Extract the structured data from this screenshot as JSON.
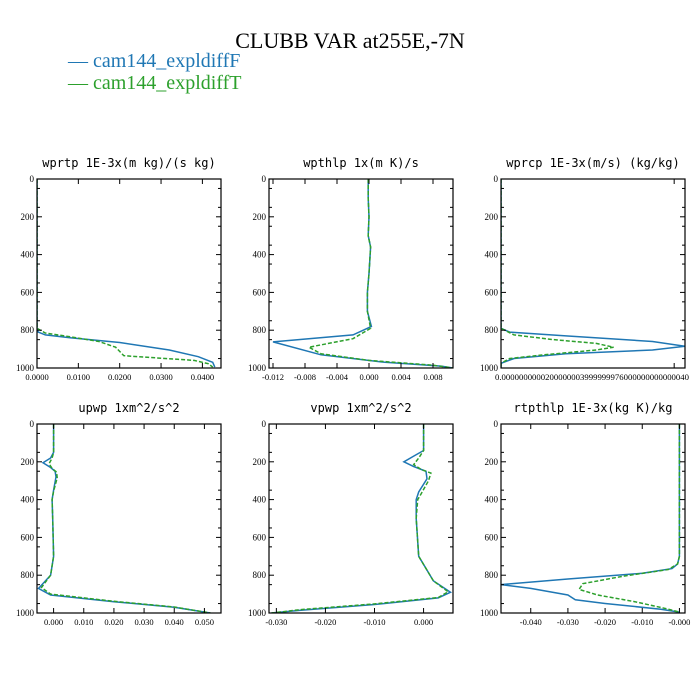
{
  "title": "CLUBB VAR at255E,-7N",
  "legend": [
    {
      "label": "cam144_expldiffF",
      "color": "#1f77b4"
    },
    {
      "label": "cam144_expldiffT",
      "color": "#2ca02c"
    }
  ],
  "chart_data": [
    {
      "type": "line",
      "title": "wprtp  1E-3x(m kg)/(s kg)",
      "ylim": [
        1000,
        0
      ],
      "yticks": [
        0,
        200,
        400,
        600,
        800,
        1000
      ],
      "xlim": [
        0,
        0.0445
      ],
      "xticks": [
        0.0,
        0.01,
        0.02,
        0.03,
        0.04
      ],
      "xticklabels": [
        "0.0000",
        "0.0100",
        "0.0200",
        "0.0300",
        "0.0400"
      ],
      "series": [
        {
          "name": "cam144_expldiffF",
          "color": "#1f77b4",
          "dash": false,
          "x": [
            0,
            0,
            0,
            0.0003,
            0.002,
            0.008,
            0.02,
            0.032,
            0.039,
            0.0425,
            0.043
          ],
          "y": [
            0,
            500,
            790,
            810,
            825,
            840,
            865,
            905,
            940,
            970,
            995
          ]
        },
        {
          "name": "cam144_expldiffT",
          "color": "#2ca02c",
          "dash": true,
          "x": [
            0,
            0,
            0,
            0.002,
            0.008,
            0.015,
            0.019,
            0.021,
            0.03,
            0.038,
            0.0415,
            0.0425
          ],
          "y": [
            0,
            500,
            790,
            815,
            835,
            860,
            890,
            935,
            948,
            960,
            978,
            995
          ]
        }
      ]
    },
    {
      "type": "line",
      "title": "wpthlp  1x(m K)/s",
      "ylim": [
        1000,
        0
      ],
      "yticks": [
        0,
        200,
        400,
        600,
        800,
        1000
      ],
      "xlim": [
        -0.0125,
        0.0105
      ],
      "xticks": [
        -0.012,
        -0.008,
        -0.004,
        0.0,
        0.004,
        0.008
      ],
      "xticklabels": [
        "-0.012",
        "-0.008",
        "-0.004",
        "0.000",
        "0.004",
        "0.008"
      ],
      "series": [
        {
          "name": "cam144_expldiffF",
          "color": "#1f77b4",
          "dash": false,
          "x": [
            -0.0001,
            -0.0001,
            0.0,
            -0.0001,
            0.0002,
            0.0,
            -0.0002,
            -0.0002,
            0.0003,
            -0.002,
            -0.012,
            -0.006,
            0.002,
            0.009,
            0.0105
          ],
          "y": [
            0,
            100,
            200,
            300,
            360,
            500,
            600,
            700,
            780,
            825,
            862,
            930,
            970,
            990,
            1000
          ]
        },
        {
          "name": "cam144_expldiffT",
          "color": "#2ca02c",
          "dash": true,
          "x": [
            -0.0001,
            -0.0001,
            0.0,
            -0.0001,
            0.0002,
            0.0,
            -0.0002,
            -0.0002,
            0.0002,
            -0.002,
            -0.0075,
            -0.006,
            0.0,
            0.008,
            0.0105
          ],
          "y": [
            0,
            100,
            200,
            300,
            360,
            500,
            600,
            700,
            790,
            845,
            890,
            925,
            960,
            985,
            1000
          ]
        }
      ]
    },
    {
      "type": "line",
      "title": "wprcp  1E-3x(m/s) (kg/kg)",
      "ylim": [
        1000,
        0
      ],
      "yticks": [
        0,
        200,
        400,
        600,
        800,
        1000
      ],
      "xlim": [
        0,
        4.25e-05
      ],
      "xticks": [
        0.0,
        4e-05
      ],
      "xticklabels": [
        "0.0000000000200000003999999976000000000000040",
        "0.000000"
      ],
      "xticklabel_overlap": "0.0000000000200000003999999976000000000000040",
      "series": [
        {
          "name": "cam144_expldiffF",
          "color": "#1f77b4",
          "dash": false,
          "x": [
            0,
            0,
            0,
            2e-06,
            1.5e-05,
            3.5e-05,
            4.25e-05,
            3.5e-05,
            1.5e-05,
            3e-06,
            0,
            0
          ],
          "y": [
            0,
            500,
            790,
            810,
            830,
            860,
            885,
            905,
            925,
            950,
            975,
            1000
          ]
        },
        {
          "name": "cam144_expldiffT",
          "color": "#2ca02c",
          "dash": true,
          "x": [
            0,
            0,
            0,
            3e-06,
            1.2e-05,
            2.2e-05,
            2.6e-05,
            2.2e-05,
            1e-05,
            2e-06,
            0,
            0
          ],
          "y": [
            0,
            500,
            790,
            825,
            850,
            870,
            890,
            905,
            930,
            950,
            975,
            1000
          ]
        }
      ]
    },
    {
      "type": "line",
      "title": "upwp  1xm^2/s^2",
      "ylim": [
        1000,
        0
      ],
      "yticks": [
        0,
        200,
        400,
        600,
        800,
        1000
      ],
      "xlim": [
        -0.0055,
        0.0555
      ],
      "xticks": [
        0.0,
        0.01,
        0.02,
        0.03,
        0.04,
        0.05
      ],
      "xticklabels": [
        "0.000",
        "0.010",
        "0.020",
        "0.030",
        "0.040",
        "0.050"
      ],
      "series": [
        {
          "name": "cam144_expldiffF",
          "color": "#1f77b4",
          "dash": false,
          "x": [
            0,
            0,
            -0.001,
            -0.0035,
            -0.001,
            0.0005,
            0.0008,
            0.0,
            -0.0005,
            -0.0003,
            0,
            -0.001,
            -0.005,
            -0.001,
            0.02,
            0.04,
            0.052
          ],
          "y": [
            0,
            150,
            180,
            205,
            230,
            250,
            280,
            350,
            400,
            500,
            700,
            800,
            870,
            905,
            940,
            970,
            1000
          ]
        },
        {
          "name": "cam144_expldiffT",
          "color": "#2ca02c",
          "dash": true,
          "x": [
            0,
            0,
            -0.0005,
            -0.0015,
            -0.0005,
            0.001,
            0.0012,
            0.0,
            -0.0005,
            -0.0003,
            0,
            -0.001,
            -0.004,
            -0.001,
            0.02,
            0.04,
            0.052
          ],
          "y": [
            0,
            150,
            180,
            210,
            235,
            255,
            285,
            355,
            400,
            500,
            700,
            800,
            865,
            900,
            938,
            968,
            1000
          ]
        }
      ]
    },
    {
      "type": "line",
      "title": "vpwp  1xm^2/s^2",
      "ylim": [
        1000,
        0
      ],
      "yticks": [
        0,
        200,
        400,
        600,
        800,
        1000
      ],
      "xlim": [
        -0.0315,
        0.006
      ],
      "xticks": [
        -0.03,
        -0.02,
        -0.01,
        0.0
      ],
      "xticklabels": [
        "-0.030",
        "-0.020",
        "-0.010",
        "0.000"
      ],
      "series": [
        {
          "name": "cam144_expldiffF",
          "color": "#1f77b4",
          "dash": false,
          "x": [
            0,
            0,
            -0.002,
            -0.004,
            -0.002,
            0.0005,
            0.0007,
            -0.001,
            -0.0015,
            -0.0015,
            -0.001,
            0.002,
            0.0055,
            0.003,
            -0.01,
            -0.025,
            -0.031
          ],
          "y": [
            0,
            140,
            170,
            200,
            225,
            250,
            290,
            360,
            400,
            500,
            700,
            830,
            890,
            920,
            955,
            985,
            1000
          ]
        },
        {
          "name": "cam144_expldiffT",
          "color": "#2ca02c",
          "dash": true,
          "x": [
            0,
            0,
            -0.001,
            -0.002,
            -0.0005,
            0.0015,
            0.001,
            -0.0005,
            -0.0012,
            -0.0015,
            -0.001,
            0.002,
            0.005,
            0.003,
            -0.01,
            -0.025,
            -0.031
          ],
          "y": [
            0,
            140,
            180,
            215,
            240,
            260,
            300,
            370,
            400,
            500,
            700,
            830,
            888,
            918,
            952,
            982,
            1000
          ]
        }
      ]
    },
    {
      "type": "line",
      "title": "rtpthlp  1E-3x(kg K)/kg",
      "ylim": [
        1000,
        0
      ],
      "yticks": [
        0,
        200,
        400,
        600,
        800,
        1000
      ],
      "xlim": [
        -0.048,
        0.0015
      ],
      "xticks": [
        -0.04,
        -0.03,
        -0.02,
        -0.01,
        0.0
      ],
      "xticklabels": [
        "-0.040",
        "-0.030",
        "-0.020",
        "-0.010",
        "-0.000"
      ],
      "series": [
        {
          "name": "cam144_expldiffF",
          "color": "#1f77b4",
          "dash": false,
          "x": [
            0,
            0,
            0,
            -0.0005,
            -0.002,
            -0.01,
            -0.03,
            -0.048,
            -0.04,
            -0.03,
            -0.028,
            -0.02,
            -0.005,
            0
          ],
          "y": [
            0,
            500,
            700,
            740,
            765,
            790,
            820,
            850,
            870,
            905,
            930,
            950,
            980,
            995
          ]
        },
        {
          "name": "cam144_expldiffT",
          "color": "#2ca02c",
          "dash": true,
          "x": [
            0,
            0,
            0,
            -0.0005,
            -0.003,
            -0.015,
            -0.026,
            -0.027,
            -0.022,
            -0.012,
            -0.004,
            0
          ],
          "y": [
            0,
            500,
            700,
            740,
            770,
            805,
            845,
            875,
            905,
            940,
            975,
            995
          ]
        }
      ]
    }
  ]
}
